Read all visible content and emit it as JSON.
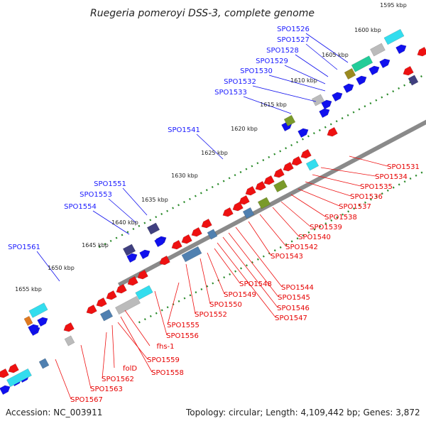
{
  "title": "Ruegeria pomeroyi DSS-3, complete genome",
  "accession": "Accession: NC_003911",
  "topology": "Topology: circular; Length: 4,109,442 bp; Genes: 3,872",
  "colors": {
    "forward": "#1010ee",
    "reverse": "#ee1111",
    "backbone": "#8a8a8a",
    "tick": "#2a8a2a",
    "cyan": "#33ddee",
    "olive": "#7a9a2a",
    "gray": "#bbbbbb",
    "steel": "#5080b0",
    "navy": "#404080"
  },
  "kbp_ticks": [
    "1595 kbp",
    "1600 kbp",
    "1605 kbp",
    "1610 kbp",
    "1615 kbp",
    "1620 kbp",
    "1625 kbp",
    "1630 kbp",
    "1635 kbp",
    "1640 kbp",
    "1645 kbp",
    "1650 kbp",
    "1655 kbp"
  ],
  "forward_labels": [
    "SPO1526",
    "SPO1527",
    "SPO1528",
    "SPO1529",
    "SPO1530",
    "SPO1532",
    "SPO1533",
    "SPO1541",
    "SPO1551",
    "SPO1553",
    "SPO1554",
    "SPO1561"
  ],
  "reverse_labels": [
    "SPO1531",
    "SPO1534",
    "SPO1535",
    "SPO1536",
    "SPO1537",
    "SPO1538",
    "SPO1539",
    "SPO1540",
    "SPO1542",
    "SPO1543",
    "SPO1544",
    "SPO1545",
    "SPO1546",
    "SPO1547",
    "SPO1548",
    "SPO1549",
    "SPO1550",
    "SPO1552",
    "SPO1555",
    "SPO1556",
    "fhs-1",
    "SPO1559",
    "SPO1558",
    "folD",
    "SPO1562",
    "SPO1563",
    "SPO1567"
  ]
}
